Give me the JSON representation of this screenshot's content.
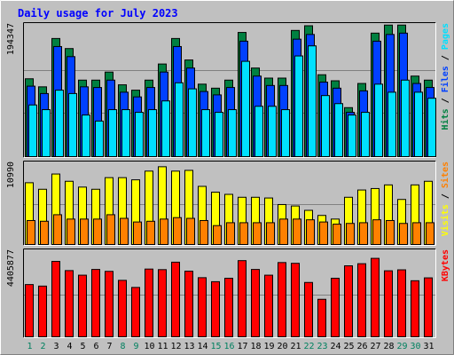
{
  "chart_data": {
    "type": "bar",
    "title": "Daily usage for July 2023",
    "days": [
      "1",
      "2",
      "3",
      "4",
      "5",
      "6",
      "7",
      "8",
      "9",
      "10",
      "11",
      "12",
      "13",
      "14",
      "15",
      "16",
      "17",
      "18",
      "19",
      "20",
      "21",
      "22",
      "23",
      "24",
      "25",
      "26",
      "27",
      "28",
      "29",
      "30",
      "31"
    ],
    "weekend_days": [
      "1",
      "2",
      "8",
      "9",
      "15",
      "16",
      "22",
      "23",
      "29",
      "30"
    ],
    "panels": [
      {
        "id": "hits",
        "ymax": 194347,
        "ymax_label": "194347",
        "labels": [
          "Pages",
          "Files",
          "Hits"
        ],
        "series": [
          {
            "name": "Hits",
            "color": "#008040",
            "values": [
              116000,
              104000,
              176000,
              161000,
              114000,
              114000,
              126000,
              107000,
              99000,
              114000,
              138000,
              176000,
              144000,
              108000,
              102000,
              114000,
              185000,
              132000,
              117000,
              117000,
              188000,
              195000,
              122000,
              113000,
              73000,
              109000,
              184000,
              196000,
              196000,
              120000,
              114000
            ]
          },
          {
            "name": "Files",
            "color": "#0040ff",
            "values": [
              105000,
              94000,
              164000,
              149000,
              104000,
              103000,
              114000,
              96000,
              89000,
              103000,
              126000,
              164000,
              132000,
              97000,
              92000,
              103000,
              172000,
              120000,
              106000,
              106000,
              175000,
              182000,
              111000,
              102000,
              66000,
              98000,
              172000,
              182000,
              184000,
              109000,
              103000
            ]
          },
          {
            "name": "Pages",
            "color": "#00e0ff",
            "values": [
              77000,
              70000,
              99000,
              94000,
              62000,
              53000,
              70000,
              70000,
              66000,
              70000,
              83000,
              110000,
              101000,
              70000,
              66000,
              70000,
              142000,
              75000,
              75000,
              70000,
              150000,
              165000,
              91000,
              79000,
              62000,
              66000,
              108000,
              96000,
              114000,
              96000,
              87000
            ]
          }
        ]
      },
      {
        "id": "visits",
        "ymax": 10990,
        "ymax_label": "10990",
        "labels": [
          "Sites",
          "Visits"
        ],
        "series": [
          {
            "name": "Visits",
            "color": "#ffff00",
            "values": [
              8500,
              7600,
              9700,
              8700,
              7900,
              7600,
              9200,
              9200,
              8900,
              10100,
              10700,
              10100,
              10200,
              8000,
              7200,
              6900,
              6500,
              6500,
              6400,
              5500,
              5300,
              4700,
              4000,
              3500,
              6500,
              7500,
              7700,
              8200,
              6200,
              8200,
              8700
            ]
          },
          {
            "name": "Sites",
            "color": "#ff8000",
            "values": [
              3300,
              3200,
              4100,
              3500,
              3500,
              3500,
              4100,
              3600,
              3100,
              3200,
              3500,
              3700,
              3600,
              3300,
              2600,
              3000,
              3000,
              3000,
              3000,
              3500,
              3500,
              3400,
              3100,
              2800,
              2900,
              3000,
              3400,
              3300,
              2900,
              3000,
              3000
            ]
          }
        ]
      },
      {
        "id": "kbytes",
        "ymax": 4405877,
        "ymax_label": "4405877",
        "labels": [
          "KBytes"
        ],
        "series": [
          {
            "name": "KBytes",
            "color": "#ff0000",
            "values": [
              2730000,
              2650000,
              3940000,
              3460000,
              3220000,
              3520000,
              3420000,
              2950000,
              2580000,
              3540000,
              3510000,
              3900000,
              3430000,
              3090000,
              2880000,
              3060000,
              3980000,
              3520000,
              3220000,
              3880000,
              3840000,
              2840000,
              1960000,
              3060000,
              3710000,
              3820000,
              4100000,
              3450000,
              3500000,
              2930000,
              3080000
            ]
          }
        ]
      }
    ]
  }
}
